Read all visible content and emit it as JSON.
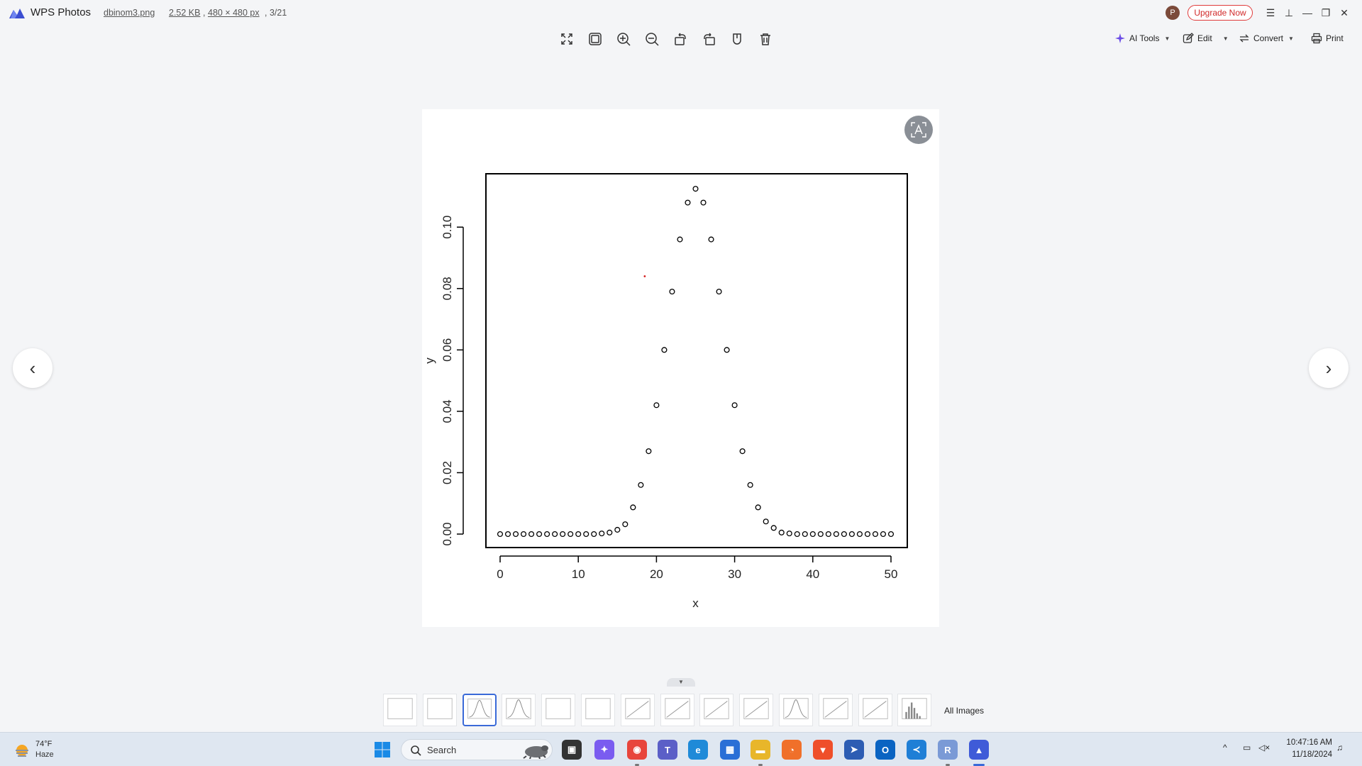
{
  "titlebar": {
    "app_name": "WPS Photos",
    "file_name": "dbinom3.png",
    "file_size": "2.52 KB",
    "separator": ",",
    "dimensions": "480 × 480 px",
    "index": ", 3/21",
    "avatar_letter": "P",
    "upgrade_label": "Upgrade Now",
    "menu_icon": "☰",
    "pin_icon": "⊥",
    "minimize_icon": "—",
    "restore_icon": "❐",
    "close_icon": "✕"
  },
  "toolbar": {
    "icons": [
      "fullscreen-icon",
      "fit-window-icon",
      "zoom-in-icon",
      "zoom-out-icon",
      "rotate-left-icon",
      "rotate-right-icon",
      "shield-icon",
      "delete-icon"
    ],
    "ai_tools_label": "AI Tools",
    "edit_label": "Edit",
    "convert_label": "Convert",
    "print_label": "Print"
  },
  "navigation": {
    "prev_icon": "‹",
    "next_icon": "›"
  },
  "chart_data": {
    "type": "scatter",
    "xlabel": "x",
    "ylabel": "y",
    "xlim": [
      0,
      50
    ],
    "ylim": [
      0,
      0.113
    ],
    "x_ticks": [
      "0",
      "10",
      "20",
      "30",
      "40",
      "50"
    ],
    "y_ticks": [
      "0.00",
      "0.02",
      "0.04",
      "0.06",
      "0.08",
      "0.10"
    ],
    "x_tick_values": [
      0,
      10,
      20,
      30,
      40,
      50
    ],
    "y_tick_values": [
      0,
      0.02,
      0.04,
      0.06,
      0.08,
      0.1
    ],
    "x": [
      0,
      1,
      2,
      3,
      4,
      5,
      6,
      7,
      8,
      9,
      10,
      11,
      12,
      13,
      14,
      15,
      16,
      17,
      18,
      19,
      20,
      21,
      22,
      23,
      24,
      25,
      26,
      27,
      28,
      29,
      30,
      31,
      32,
      33,
      34,
      35,
      36,
      37,
      38,
      39,
      40,
      41,
      42,
      43,
      44,
      45,
      46,
      47,
      48,
      49,
      50
    ],
    "y": [
      0,
      0,
      0,
      0,
      0,
      0,
      0,
      0,
      0,
      0,
      0,
      0,
      0,
      0.0002,
      0.0005,
      0.0014,
      0.0032,
      0.0087,
      0.016,
      0.027,
      0.042,
      0.06,
      0.079,
      0.096,
      0.108,
      0.1125,
      0.108,
      0.096,
      0.079,
      0.06,
      0.042,
      0.027,
      0.016,
      0.0087,
      0.0041,
      0.002,
      0.0005,
      0.0002,
      0,
      0,
      0,
      0,
      0,
      0,
      0,
      0,
      0,
      0,
      0,
      0,
      0
    ],
    "highlight_point": {
      "x": 18.5,
      "y": 0.084,
      "color": "#d42020"
    }
  },
  "thumbnails": {
    "count": 14,
    "active_index": 2,
    "all_images_label": "All Images"
  },
  "taskbar": {
    "weather_temp": "74°F",
    "weather_desc": "Haze",
    "search_label": "Search",
    "apps": [
      {
        "name": "taskview",
        "color": "#333333",
        "glyph": "▣"
      },
      {
        "name": "copilot",
        "color": "#7a5cf0",
        "glyph": "✦"
      },
      {
        "name": "chrome",
        "color": "#e8453c",
        "glyph": "◉"
      },
      {
        "name": "teams",
        "color": "#5b5fc7",
        "glyph": "T"
      },
      {
        "name": "edge",
        "color": "#1f8ad8",
        "glyph": "e"
      },
      {
        "name": "store",
        "color": "#2a6fd6",
        "glyph": "▦"
      },
      {
        "name": "explorer",
        "color": "#e8b62a",
        "glyph": "▬"
      },
      {
        "name": "firefox",
        "color": "#f0702a",
        "glyph": "◔"
      },
      {
        "name": "brave",
        "color": "#ef4f2a",
        "glyph": "▼"
      },
      {
        "name": "mail",
        "color": "#2d5db3",
        "glyph": "➤"
      },
      {
        "name": "outlook",
        "color": "#0a64c2",
        "glyph": "O"
      },
      {
        "name": "vscode",
        "color": "#1f7fd6",
        "glyph": "≺"
      },
      {
        "name": "r-app",
        "color": "#7a9ad6",
        "glyph": "R"
      },
      {
        "name": "wps-photos",
        "color": "#3f5bd8",
        "glyph": "▲"
      }
    ],
    "time": "10:47:16 AM",
    "date": "11/18/2024",
    "tray_chevron": "^",
    "network_icon": "▭",
    "volume_icon": "◁×",
    "bell_icon": "♫"
  },
  "colors": {
    "accent": "#3a6ad8",
    "upgrade": "#e03b3b",
    "highlight": "#d42020"
  }
}
